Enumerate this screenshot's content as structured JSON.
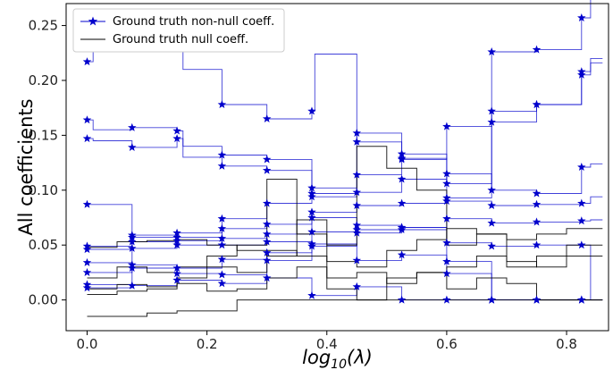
{
  "chart_data": {
    "type": "line",
    "xlabel_base": "log",
    "xlabel_sub": "10",
    "xlabel_arg": "(λ)",
    "ylabel": "All coefficients",
    "xlim": [
      -0.035,
      0.87
    ],
    "ylim": [
      -0.028,
      0.27
    ],
    "xticks": [
      0.0,
      0.2,
      0.4,
      0.6,
      0.8
    ],
    "xtick_labels": [
      "0.0",
      "0.2",
      "0.4",
      "0.6",
      "0.8"
    ],
    "yticks": [
      0.0,
      0.05,
      0.1,
      0.15,
      0.2,
      0.25
    ],
    "ytick_labels": [
      "0.00",
      "0.05",
      "0.10",
      "0.15",
      "0.20",
      "0.25"
    ],
    "grid": false,
    "legend": {
      "position": "top-left",
      "entries": [
        {
          "label": "Ground truth non-null coeff.",
          "color": "#0000cc",
          "marker": "star"
        },
        {
          "label": "Ground truth null coeff.",
          "color": "#000000",
          "marker": "none"
        }
      ]
    },
    "marker_x": [
      0.0,
      0.075,
      0.15,
      0.225,
      0.3,
      0.375,
      0.45,
      0.525,
      0.6,
      0.675,
      0.75,
      0.825
    ],
    "series": [
      {
        "group": "non-null",
        "color": "#0000cc",
        "x": [
          0.0,
          0.01,
          0.075,
          0.15,
          0.16,
          0.225,
          0.3,
          0.375,
          0.38,
          0.45,
          0.525,
          0.6,
          0.675,
          0.75,
          0.825,
          0.84,
          0.86
        ],
        "y": [
          0.217,
          0.228,
          0.239,
          0.239,
          0.21,
          0.178,
          0.165,
          0.172,
          0.224,
          0.144,
          0.128,
          0.158,
          0.226,
          0.228,
          0.257,
          0.274,
          0.274
        ]
      },
      {
        "group": "non-null",
        "color": "#0000cc",
        "x": [
          0.0,
          0.01,
          0.075,
          0.15,
          0.16,
          0.225,
          0.3,
          0.375,
          0.45,
          0.525,
          0.6,
          0.675,
          0.75,
          0.825,
          0.84,
          0.86
        ],
        "y": [
          0.164,
          0.155,
          0.157,
          0.154,
          0.14,
          0.132,
          0.128,
          0.102,
          0.152,
          0.133,
          0.106,
          0.172,
          0.178,
          0.208,
          0.22,
          0.22
        ]
      },
      {
        "group": "non-null",
        "color": "#0000cc",
        "x": [
          0.0,
          0.01,
          0.075,
          0.15,
          0.16,
          0.225,
          0.3,
          0.375,
          0.45,
          0.525,
          0.6,
          0.675,
          0.75,
          0.825,
          0.84,
          0.86
        ],
        "y": [
          0.147,
          0.145,
          0.139,
          0.147,
          0.13,
          0.122,
          0.118,
          0.097,
          0.114,
          0.129,
          0.093,
          0.162,
          0.178,
          0.205,
          0.216,
          0.216
        ]
      },
      {
        "group": "non-null",
        "color": "#0000cc",
        "x": [
          0.0,
          0.075,
          0.15,
          0.225,
          0.3,
          0.375,
          0.45,
          0.525,
          0.6,
          0.675,
          0.75,
          0.825,
          0.84,
          0.86
        ],
        "y": [
          0.087,
          0.053,
          0.05,
          0.074,
          0.088,
          0.094,
          0.098,
          0.11,
          0.115,
          0.1,
          0.097,
          0.121,
          0.124,
          0.124
        ]
      },
      {
        "group": "non-null",
        "color": "#0000cc",
        "x": [
          0.0,
          0.075,
          0.15,
          0.225,
          0.3,
          0.375,
          0.45,
          0.525,
          0.6,
          0.675,
          0.75,
          0.825,
          0.84,
          0.86
        ],
        "y": [
          0.049,
          0.057,
          0.061,
          0.065,
          0.069,
          0.08,
          0.086,
          0.088,
          0.09,
          0.086,
          0.087,
          0.088,
          0.094,
          0.094
        ]
      },
      {
        "group": "non-null",
        "color": "#0000cc",
        "x": [
          0.0,
          0.075,
          0.15,
          0.225,
          0.3,
          0.375,
          0.45,
          0.525,
          0.6,
          0.675,
          0.75,
          0.825,
          0.84,
          0.86
        ],
        "y": [
          0.046,
          0.059,
          0.057,
          0.05,
          0.06,
          0.075,
          0.068,
          0.066,
          0.074,
          0.07,
          0.071,
          0.072,
          0.073,
          0.073
        ]
      },
      {
        "group": "non-null",
        "color": "#0000cc",
        "x": [
          0.0,
          0.075,
          0.15,
          0.225,
          0.3,
          0.375,
          0.45,
          0.525,
          0.6,
          0.675,
          0.75,
          0.825,
          0.84,
          0.86
        ],
        "y": [
          0.034,
          0.047,
          0.054,
          0.056,
          0.053,
          0.062,
          0.064,
          0.064,
          0.052,
          0.049,
          0.05,
          0.05,
          0.0,
          0.0
        ]
      },
      {
        "group": "non-null",
        "color": "#0000cc",
        "x": [
          0.0,
          0.075,
          0.15,
          0.225,
          0.3,
          0.375,
          0.45,
          0.525,
          0.6,
          0.675,
          0.75,
          0.825,
          0.86
        ],
        "y": [
          0.025,
          0.029,
          0.029,
          0.037,
          0.043,
          0.049,
          0.061,
          0.066,
          0.024,
          0.0,
          0.0,
          0.0,
          0.0
        ]
      },
      {
        "group": "non-null",
        "color": "#0000cc",
        "x": [
          0.0,
          0.075,
          0.15,
          0.225,
          0.3,
          0.375,
          0.45,
          0.525,
          0.6,
          0.675,
          0.86
        ],
        "y": [
          0.014,
          0.032,
          0.024,
          0.023,
          0.036,
          0.051,
          0.036,
          0.041,
          0.035,
          0.0,
          0.0
        ]
      },
      {
        "group": "non-null",
        "color": "#0000cc",
        "x": [
          0.0,
          0.075,
          0.15,
          0.225,
          0.3,
          0.375,
          0.45,
          0.525,
          0.6,
          0.86
        ],
        "y": [
          0.011,
          0.013,
          0.018,
          0.015,
          0.02,
          0.004,
          0.012,
          0.0,
          0.0,
          0.0
        ]
      },
      {
        "group": "null",
        "color": "#000000",
        "x": [
          0.0,
          0.05,
          0.1,
          0.15,
          0.2,
          0.25,
          0.3,
          0.35,
          0.4,
          0.45,
          0.5,
          0.55,
          0.6,
          0.65,
          0.7,
          0.75,
          0.8,
          0.86
        ],
        "y": [
          0.048,
          0.053,
          0.054,
          0.055,
          0.05,
          0.045,
          0.04,
          0.073,
          0.035,
          0.03,
          0.045,
          0.055,
          0.065,
          0.06,
          0.055,
          0.06,
          0.065,
          0.065
        ]
      },
      {
        "group": "null",
        "color": "#000000",
        "x": [
          0.0,
          0.05,
          0.1,
          0.15,
          0.2,
          0.25,
          0.3,
          0.35,
          0.4,
          0.45,
          0.5,
          0.55,
          0.6,
          0.65,
          0.7,
          0.75,
          0.8,
          0.86
        ],
        "y": [
          0.02,
          0.03,
          0.025,
          0.03,
          0.04,
          0.05,
          0.11,
          0.06,
          0.05,
          0.14,
          0.12,
          0.1,
          0.05,
          0.06,
          0.03,
          0.04,
          0.05,
          0.05
        ]
      },
      {
        "group": "null",
        "color": "#000000",
        "x": [
          0.0,
          0.05,
          0.1,
          0.15,
          0.2,
          0.25,
          0.3,
          0.35,
          0.4,
          0.45,
          0.5,
          0.55,
          0.6,
          0.65,
          0.7,
          0.75,
          0.8,
          0.86
        ],
        "y": [
          0.01,
          0.014,
          0.012,
          0.02,
          0.03,
          0.025,
          0.045,
          0.04,
          0.02,
          0.025,
          0.015,
          0.025,
          0.03,
          0.04,
          0.035,
          0.03,
          0.04,
          0.04
        ]
      },
      {
        "group": "null",
        "color": "#000000",
        "x": [
          0.0,
          0.05,
          0.1,
          0.15,
          0.2,
          0.25,
          0.3,
          0.35,
          0.4,
          0.45,
          0.5,
          0.55,
          0.6,
          0.65,
          0.7,
          0.75,
          0.8,
          0.86
        ],
        "y": [
          0.005,
          0.008,
          0.01,
          0.015,
          0.008,
          0.01,
          0.02,
          0.03,
          0.01,
          0.0,
          0.02,
          0.025,
          0.01,
          0.02,
          0.015,
          0.0,
          0.0,
          0.0
        ]
      },
      {
        "group": "null",
        "color": "#000000",
        "x": [
          0.0,
          0.05,
          0.1,
          0.15,
          0.2,
          0.25,
          0.3,
          0.35,
          0.4,
          0.45,
          0.5,
          0.55,
          0.6,
          0.65,
          0.7,
          0.75,
          0.8,
          0.86
        ],
        "y": [
          -0.015,
          -0.015,
          -0.012,
          -0.01,
          -0.01,
          0.0,
          0.0,
          0.0,
          0.0,
          0.0,
          0.0,
          0.0,
          0.0,
          0.0,
          0.0,
          0.0,
          0.0,
          0.0
        ]
      }
    ]
  }
}
